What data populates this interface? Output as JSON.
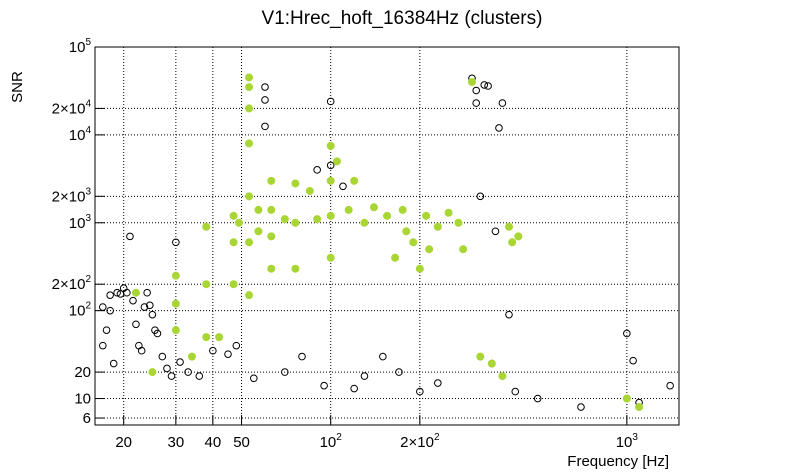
{
  "chart_data": {
    "type": "scatter",
    "title": "V1:Hrec_hoft_16384Hz (clusters)",
    "xlabel": "Frequency [Hz]",
    "ylabel": "SNR",
    "x_scale": "log",
    "y_scale": "log",
    "xlim": [
      16,
      1500
    ],
    "ylim": [
      5,
      100000
    ],
    "grid": true,
    "x_ticks": [
      {
        "value": 20,
        "label": "20"
      },
      {
        "value": 30,
        "label": "30"
      },
      {
        "value": 40,
        "label": "40"
      },
      {
        "value": 50,
        "label": "50"
      },
      {
        "value": 100,
        "label": "10",
        "sup": "2"
      },
      {
        "value": 200,
        "label": "2×10",
        "sup": "2"
      },
      {
        "value": 1000,
        "label": "10",
        "sup": "3"
      }
    ],
    "y_ticks": [
      {
        "value": 6,
        "label": "6"
      },
      {
        "value": 10,
        "label": "10"
      },
      {
        "value": 20,
        "label": "20"
      },
      {
        "value": 100,
        "label": "10",
        "sup": "2"
      },
      {
        "value": 200,
        "label": "2×10",
        "sup": "2"
      },
      {
        "value": 1000,
        "label": "10",
        "sup": "3"
      },
      {
        "value": 2000,
        "label": "2×10",
        "sup": "3"
      },
      {
        "value": 10000,
        "label": "10",
        "sup": "4"
      },
      {
        "value": 20000,
        "label": "2×10",
        "sup": "4"
      },
      {
        "value": 100000,
        "label": "10",
        "sup": "5"
      }
    ],
    "series": [
      {
        "style": "hollow-circle",
        "color": "#000000",
        "points": [
          [
            17,
            110
          ],
          [
            17,
            40
          ],
          [
            17.5,
            60
          ],
          [
            18,
            100
          ],
          [
            18,
            150
          ],
          [
            18.5,
            25
          ],
          [
            19,
            160
          ],
          [
            19.5,
            155
          ],
          [
            20,
            180
          ],
          [
            20.5,
            160
          ],
          [
            21,
            700
          ],
          [
            21.5,
            130
          ],
          [
            22,
            70
          ],
          [
            22.5,
            40
          ],
          [
            23,
            35
          ],
          [
            23.5,
            110
          ],
          [
            24,
            160
          ],
          [
            24.5,
            115
          ],
          [
            25,
            90
          ],
          [
            25.5,
            60
          ],
          [
            26,
            55
          ],
          [
            27,
            30
          ],
          [
            28,
            22
          ],
          [
            29,
            18
          ],
          [
            30,
            600
          ],
          [
            31,
            26
          ],
          [
            33,
            20
          ],
          [
            36,
            18
          ],
          [
            40,
            35
          ],
          [
            45,
            32
          ],
          [
            48,
            40
          ],
          [
            55,
            17
          ],
          [
            60,
            12500
          ],
          [
            60,
            25000
          ],
          [
            60,
            35000
          ],
          [
            70,
            20
          ],
          [
            80,
            30
          ],
          [
            90,
            4000
          ],
          [
            95,
            14
          ],
          [
            100,
            24000
          ],
          [
            100,
            4500
          ],
          [
            110,
            2600
          ],
          [
            120,
            13
          ],
          [
            130,
            18
          ],
          [
            150,
            30
          ],
          [
            170,
            20
          ],
          [
            200,
            12
          ],
          [
            230,
            15
          ],
          [
            300,
            44000
          ],
          [
            310,
            23000
          ],
          [
            310,
            32000
          ],
          [
            320,
            2000
          ],
          [
            330,
            37000
          ],
          [
            340,
            36000
          ],
          [
            350,
            25
          ],
          [
            360,
            800
          ],
          [
            370,
            12000
          ],
          [
            380,
            23000
          ],
          [
            400,
            90
          ],
          [
            420,
            12
          ],
          [
            500,
            10
          ],
          [
            700,
            8
          ],
          [
            1000,
            55
          ],
          [
            1050,
            27
          ],
          [
            1100,
            9
          ],
          [
            1400,
            14
          ]
        ]
      },
      {
        "style": "filled-circle",
        "color": "#a9d634",
        "points": [
          [
            22,
            160
          ],
          [
            25,
            20
          ],
          [
            30,
            250
          ],
          [
            30,
            120
          ],
          [
            30,
            60
          ],
          [
            34,
            30
          ],
          [
            38,
            900
          ],
          [
            38,
            200
          ],
          [
            38,
            50
          ],
          [
            42,
            50
          ],
          [
            47,
            1200
          ],
          [
            47,
            600
          ],
          [
            47,
            200
          ],
          [
            49,
            1000
          ],
          [
            53,
            35000
          ],
          [
            53,
            45000
          ],
          [
            53,
            20000
          ],
          [
            53,
            8000
          ],
          [
            53,
            2000
          ],
          [
            53,
            600
          ],
          [
            53,
            150
          ],
          [
            57,
            1400
          ],
          [
            57,
            800
          ],
          [
            63,
            3000
          ],
          [
            63,
            1400
          ],
          [
            63,
            700
          ],
          [
            63,
            300
          ],
          [
            70,
            1100
          ],
          [
            76,
            2800
          ],
          [
            76,
            1000
          ],
          [
            76,
            300
          ],
          [
            85,
            2300
          ],
          [
            90,
            1100
          ],
          [
            100,
            7500
          ],
          [
            100,
            3000
          ],
          [
            100,
            1200
          ],
          [
            100,
            400
          ],
          [
            105,
            5000
          ],
          [
            115,
            1400
          ],
          [
            120,
            3000
          ],
          [
            130,
            1000
          ],
          [
            140,
            1500
          ],
          [
            155,
            1200
          ],
          [
            165,
            400
          ],
          [
            175,
            1400
          ],
          [
            180,
            800
          ],
          [
            190,
            600
          ],
          [
            200,
            300
          ],
          [
            210,
            1200
          ],
          [
            215,
            500
          ],
          [
            230,
            900
          ],
          [
            250,
            1300
          ],
          [
            270,
            1000
          ],
          [
            280,
            500
          ],
          [
            300,
            40000
          ],
          [
            320,
            30
          ],
          [
            350,
            25
          ],
          [
            380,
            18
          ],
          [
            400,
            900
          ],
          [
            410,
            600
          ],
          [
            430,
            700
          ],
          [
            1000,
            10
          ],
          [
            1100,
            8
          ]
        ]
      }
    ]
  }
}
